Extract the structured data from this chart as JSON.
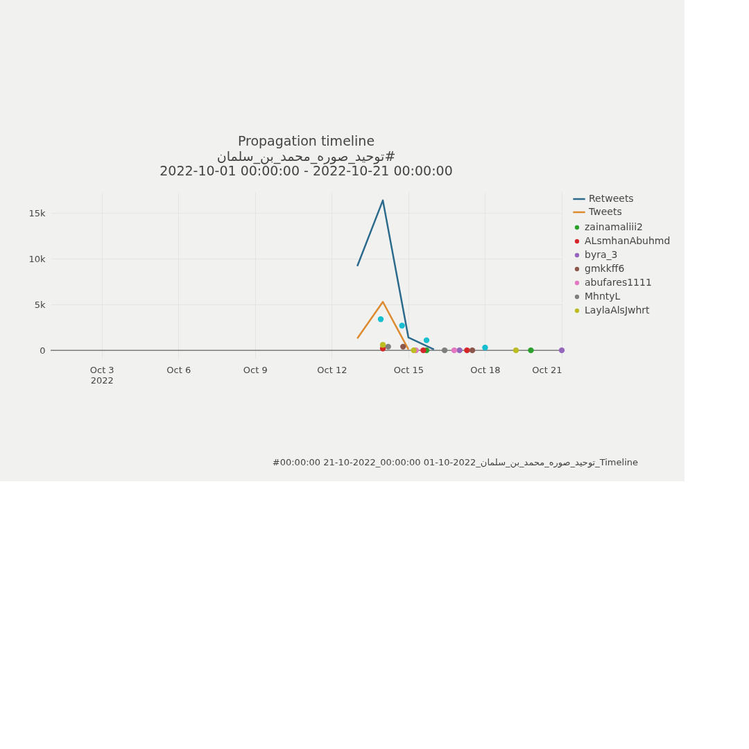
{
  "chart_data": {
    "type": "line",
    "title": "Propagation timeline",
    "subtitle": "توحيد_صوره_محمد_بن_سلمان#\n2022-10-01 00:00:00 - 2022-10-21 00:00:00",
    "series": [
      {
        "name": "Retweets",
        "color": "#2b6a8c",
        "x": [
          "2022-10-13",
          "2022-10-14",
          "2022-10-15",
          "2022-10-16"
        ],
        "values": [
          9200,
          16400,
          1400,
          100
        ]
      },
      {
        "name": "Tweets",
        "color": "#dd8a2e",
        "x": [
          "2022-10-13",
          "2022-10-14",
          "2022-10-15"
        ],
        "values": [
          1300,
          5300,
          100
        ]
      },
      {
        "name": "zainamaliii2",
        "type": "scatter",
        "marker": "circle",
        "color": "#2ca02c",
        "x": [
          "2022-10-15T17:00",
          "2022-10-19T19:00"
        ],
        "values": [
          0,
          0
        ]
      },
      {
        "name": "ALsmhanAbuhmd",
        "type": "scatter",
        "marker": "circle",
        "color": "#d62728",
        "x": [
          "2022-10-14T00:00",
          "2022-10-15T14:00",
          "2022-10-17T07:00"
        ],
        "values": [
          200,
          0,
          0
        ]
      },
      {
        "name": "byra_3",
        "type": "scatter",
        "marker": "circle",
        "color": "#9467bd",
        "x": [
          "2022-10-17T00:00",
          "2022-10-21T00:00"
        ],
        "values": [
          0,
          0
        ]
      },
      {
        "name": "gmkkff6",
        "type": "scatter",
        "marker": "circle",
        "color": "#8c564b",
        "x": [
          "2022-10-14T19:00",
          "2022-10-17T12:00"
        ],
        "values": [
          400,
          0
        ]
      },
      {
        "name": "abufares1111",
        "type": "scatter",
        "marker": "circle",
        "color": "#e377c2",
        "x": [
          "2022-10-15T07:00",
          "2022-10-16T19:00"
        ],
        "values": [
          0,
          0
        ]
      },
      {
        "name": "MhntyL",
        "type": "scatter",
        "marker": "circle",
        "color": "#7f7f7f",
        "x": [
          "2022-10-14T05:00",
          "2022-10-16T10:00"
        ],
        "values": [
          400,
          0
        ]
      },
      {
        "name": "LaylaAlsJwhrt",
        "type": "scatter",
        "marker": "circle",
        "color": "#bcbd22",
        "x": [
          "2022-10-14T00:00",
          "2022-10-15T05:00",
          "2022-10-19T05:00"
        ],
        "values": [
          600,
          0,
          0
        ]
      },
      {
        "type": "scatter",
        "marker": "circle",
        "color": "#17becf",
        "x": [
          "2022-10-13T22:00",
          "2022-10-14T18:00",
          "2022-10-15T17:00",
          "2022-10-18T00:00"
        ],
        "values": [
          3400,
          2700,
          1100,
          300
        ]
      }
    ],
    "xlim": [
      "2022-10-01",
      "2022-10-21"
    ],
    "xticks": [
      {
        "value": "2022-10-03",
        "label": "Oct 3\n2022"
      },
      {
        "value": "2022-10-06",
        "label": "Oct 6"
      },
      {
        "value": "2022-10-09",
        "label": "Oct 9"
      },
      {
        "value": "2022-10-12",
        "label": "Oct 12"
      },
      {
        "value": "2022-10-15",
        "label": "Oct 15"
      },
      {
        "value": "2022-10-18",
        "label": "Oct 18"
      },
      {
        "value": "2022-10-21",
        "label": "Oct 21"
      }
    ],
    "ylim": [
      -900,
      17300
    ],
    "yticks": [
      0,
      {
        "value": 5000,
        "label": "5k"
      },
      {
        "value": 10000,
        "label": "10k"
      },
      {
        "value": 15000,
        "label": "15k"
      }
    ],
    "grid": true,
    "legend": "top right",
    "annotations": [
      "#00:00:00 21-10-2022_00:00:00 01-10-2022_توحيد_صوره_محمد_بن_سلمان_Timeline"
    ]
  }
}
